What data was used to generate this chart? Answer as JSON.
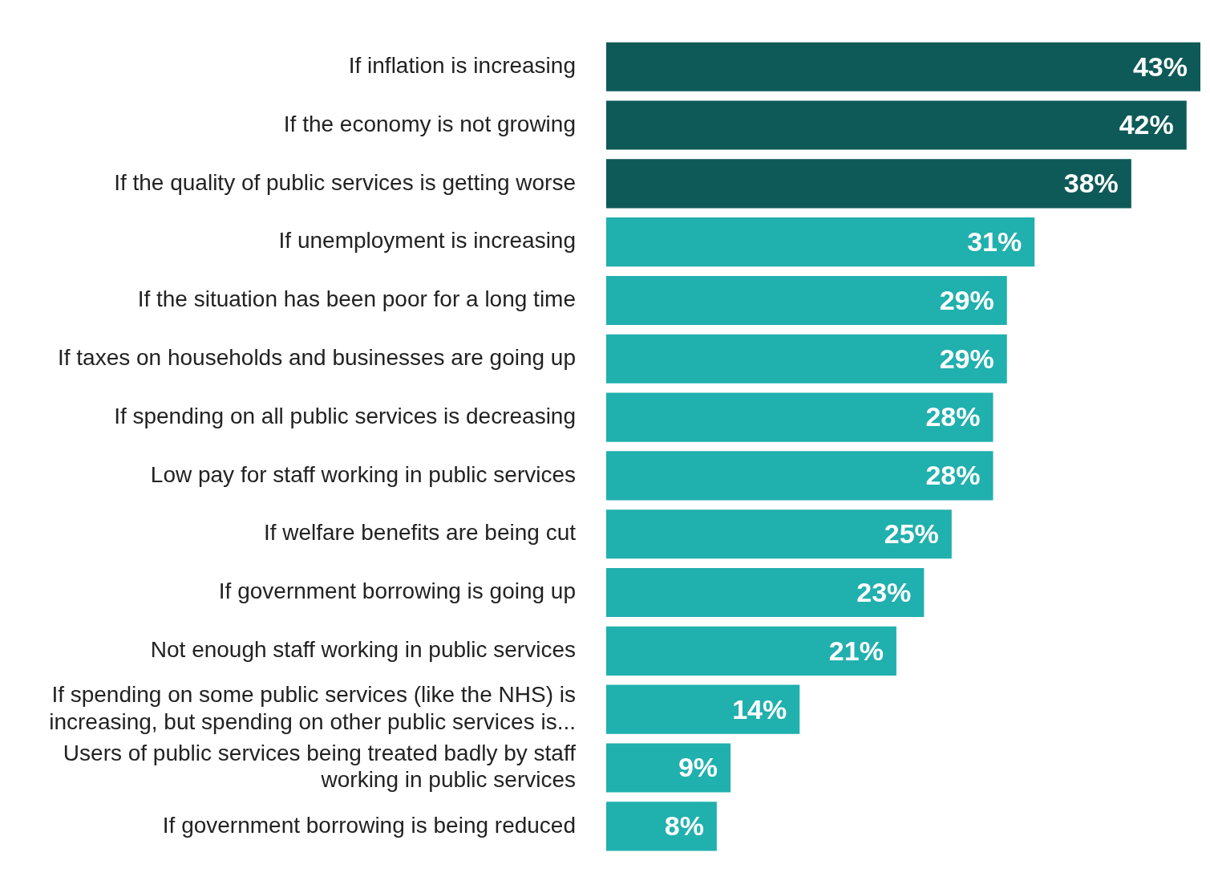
{
  "chart_data": {
    "type": "bar",
    "orientation": "horizontal",
    "categories": [
      "If inflation is increasing",
      "If the economy is not growing",
      "If the quality of public services is getting worse",
      "If unemployment is increasing",
      "If the situation has been poor for a long time",
      "If taxes on households and businesses are going up",
      "If spending on all public services is decreasing",
      "Low pay for staff working in public services",
      "If welfare benefits are being cut",
      "If government borrowing is going up",
      "Not enough staff working in public services",
      "If spending on some public services (like the NHS) is increasing, but spending on other public services is...",
      "Users of public services being treated badly by staff working in public services",
      "If government borrowing is being reduced"
    ],
    "values": [
      43,
      42,
      38,
      31,
      29,
      29,
      28,
      28,
      25,
      23,
      21,
      14,
      9,
      8
    ],
    "value_labels": [
      "43%",
      "42%",
      "38%",
      "31%",
      "29%",
      "29%",
      "28%",
      "28%",
      "25%",
      "23%",
      "21%",
      "14%",
      "9%",
      "8%"
    ],
    "colors": [
      "#0e5a58",
      "#0e5a58",
      "#0e5a58",
      "#20b0ae",
      "#20b0ae",
      "#20b0ae",
      "#20b0ae",
      "#20b0ae",
      "#20b0ae",
      "#20b0ae",
      "#20b0ae",
      "#20b0ae",
      "#20b0ae",
      "#20b0ae"
    ],
    "legend": false
  }
}
